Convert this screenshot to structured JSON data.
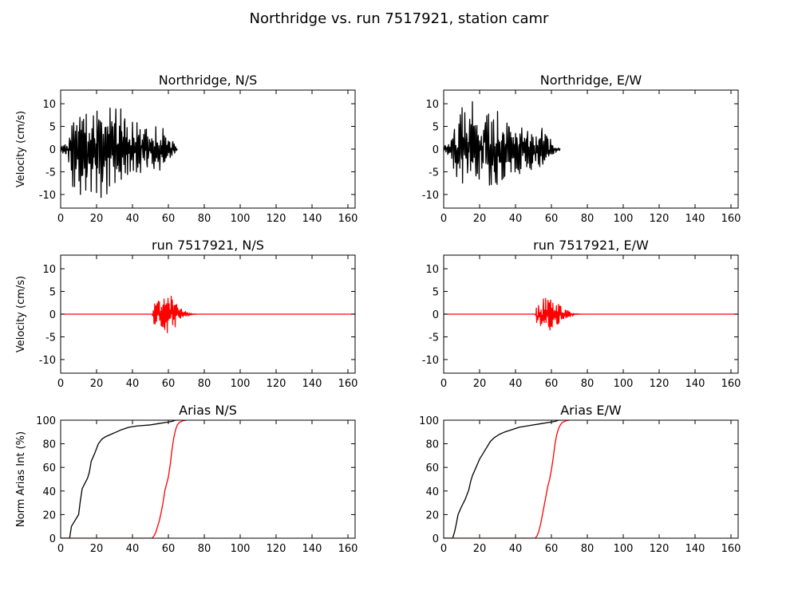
{
  "figure": {
    "title": "Northridge vs. run 7517921, station camr"
  },
  "colors": {
    "recorded": "#000000",
    "simulated": "#ff0000",
    "axes": "#000000",
    "background": "#ffffff"
  },
  "chart_data": [
    {
      "id": "vel_ns_recorded",
      "type": "line",
      "title": "Northridge, N/S",
      "xlabel": "",
      "ylabel": "Velocity (cm/s)",
      "xlim": [
        0,
        164
      ],
      "ylim": [
        -13,
        13
      ],
      "xticks": [
        0,
        20,
        40,
        60,
        80,
        100,
        120,
        140,
        160
      ],
      "yticks": [
        -10,
        -5,
        0,
        5,
        10
      ],
      "series": [
        {
          "color": "#000000",
          "kind": "waveform",
          "t_start": 0,
          "t_end": 65,
          "dt": 0.25,
          "seed": 11,
          "envelope": [
            [
              0,
              1
            ],
            [
              4,
              1.5
            ],
            [
              6,
              10
            ],
            [
              20,
              11
            ],
            [
              30,
              10
            ],
            [
              40,
              7
            ],
            [
              50,
              5
            ],
            [
              58,
              5
            ],
            [
              62,
              2
            ],
            [
              65,
              0.3
            ]
          ]
        }
      ]
    },
    {
      "id": "vel_ew_recorded",
      "type": "line",
      "title": "Northridge, E/W",
      "xlabel": "",
      "ylabel": "",
      "xlim": [
        0,
        164
      ],
      "ylim": [
        -13,
        13
      ],
      "xticks": [
        0,
        20,
        40,
        60,
        80,
        100,
        120,
        140,
        160
      ],
      "yticks": [
        -10,
        -5,
        0,
        5,
        10
      ],
      "series": [
        {
          "color": "#000000",
          "kind": "waveform",
          "t_start": 0,
          "t_end": 65,
          "dt": 0.25,
          "seed": 23,
          "envelope": [
            [
              0,
              1
            ],
            [
              4,
              1.5
            ],
            [
              6,
              8
            ],
            [
              14,
              12
            ],
            [
              22,
              10
            ],
            [
              32,
              8
            ],
            [
              40,
              6
            ],
            [
              50,
              5
            ],
            [
              55,
              5
            ],
            [
              60,
              2
            ],
            [
              65,
              0.3
            ]
          ]
        }
      ]
    },
    {
      "id": "vel_ns_simulated",
      "type": "line",
      "title": "run 7517921, N/S",
      "xlabel": "",
      "ylabel": "Velocity (cm/s)",
      "xlim": [
        0,
        164
      ],
      "ylim": [
        -13,
        13
      ],
      "xticks": [
        0,
        20,
        40,
        60,
        80,
        100,
        120,
        140,
        160
      ],
      "yticks": [
        -10,
        -5,
        0,
        5,
        10
      ],
      "series": [
        {
          "color": "#ff0000",
          "kind": "waveform",
          "t_start": 0,
          "t_end": 164,
          "dt": 0.2,
          "seed": 37,
          "envelope": [
            [
              0,
              0
            ],
            [
              51,
              0
            ],
            [
              52,
              2.5
            ],
            [
              56,
              3.5
            ],
            [
              60,
              4.5
            ],
            [
              63,
              3.5
            ],
            [
              66,
              1.5
            ],
            [
              70,
              0.8
            ],
            [
              73,
              0.2
            ],
            [
              76,
              0
            ],
            [
              164,
              0
            ]
          ]
        }
      ]
    },
    {
      "id": "vel_ew_simulated",
      "type": "line",
      "title": "run 7517921, E/W",
      "xlabel": "",
      "ylabel": "",
      "xlim": [
        0,
        164
      ],
      "ylim": [
        -13,
        13
      ],
      "xticks": [
        0,
        20,
        40,
        60,
        80,
        100,
        120,
        140,
        160
      ],
      "yticks": [
        -10,
        -5,
        0,
        5,
        10
      ],
      "series": [
        {
          "color": "#ff0000",
          "kind": "waveform",
          "t_start": 0,
          "t_end": 164,
          "dt": 0.2,
          "seed": 53,
          "envelope": [
            [
              0,
              0
            ],
            [
              51,
              0
            ],
            [
              52,
              2.5
            ],
            [
              56,
              3.5
            ],
            [
              60,
              4.5
            ],
            [
              63,
              3.5
            ],
            [
              66,
              1.5
            ],
            [
              70,
              0.8
            ],
            [
              73,
              0.2
            ],
            [
              76,
              0
            ],
            [
              164,
              0
            ]
          ]
        }
      ]
    },
    {
      "id": "arias_ns",
      "type": "line",
      "title": "Arias N/S",
      "xlabel": "",
      "ylabel": "Norm Arias Int (%)",
      "xlim": [
        0,
        164
      ],
      "ylim": [
        0,
        100
      ],
      "xticks": [
        0,
        20,
        40,
        60,
        80,
        100,
        120,
        140,
        160
      ],
      "yticks": [
        0,
        20,
        40,
        60,
        80,
        100
      ],
      "series": [
        {
          "color": "#000000",
          "kind": "curve",
          "x": [
            0,
            5,
            6,
            8,
            10,
            11,
            12,
            13,
            15,
            16,
            17,
            19,
            21,
            23,
            25,
            28,
            31,
            34,
            38,
            42,
            46,
            50,
            54,
            58,
            62,
            64,
            66
          ],
          "y": [
            0,
            0,
            10,
            15,
            20,
            32,
            42,
            45,
            51,
            56,
            65,
            72,
            80,
            84,
            86,
            88,
            90,
            92,
            94,
            95,
            95.5,
            96,
            97,
            98,
            99,
            100,
            100
          ]
        },
        {
          "color": "#ff0000",
          "kind": "curve",
          "x": [
            0,
            51,
            52,
            53,
            54,
            55,
            56,
            57,
            58,
            59,
            60,
            61,
            62,
            63,
            64,
            65,
            66,
            68,
            70
          ],
          "y": [
            0,
            0,
            2,
            5,
            10,
            15,
            22,
            30,
            40,
            46,
            52,
            62,
            75,
            85,
            92,
            96,
            98,
            99.5,
            100
          ]
        }
      ]
    },
    {
      "id": "arias_ew",
      "type": "line",
      "title": "Arias E/W",
      "xlabel": "",
      "ylabel": "",
      "xlim": [
        0,
        164
      ],
      "ylim": [
        0,
        100
      ],
      "xticks": [
        0,
        20,
        40,
        60,
        80,
        100,
        120,
        140,
        160
      ],
      "yticks": [
        0,
        20,
        40,
        60,
        80,
        100
      ],
      "series": [
        {
          "color": "#000000",
          "kind": "curve",
          "x": [
            0,
            5,
            6,
            7,
            8,
            10,
            12,
            14,
            15,
            16,
            18,
            20,
            22,
            24,
            26,
            28,
            31,
            34,
            38,
            42,
            46,
            50,
            54,
            58,
            62,
            64,
            66
          ],
          "y": [
            0,
            0,
            5,
            12,
            20,
            27,
            33,
            41,
            48,
            53,
            60,
            67,
            72,
            77,
            82,
            85,
            88,
            90,
            92,
            94,
            95,
            96,
            97,
            98,
            99,
            100,
            100
          ]
        },
        {
          "color": "#ff0000",
          "kind": "curve",
          "x": [
            0,
            51,
            52,
            53,
            54,
            55,
            56,
            57,
            58,
            59,
            60,
            61,
            62,
            63,
            64,
            65,
            66,
            68,
            70
          ],
          "y": [
            0,
            0,
            2,
            6,
            12,
            20,
            28,
            36,
            44,
            50,
            58,
            68,
            80,
            88,
            93,
            96,
            98,
            99.5,
            100
          ]
        }
      ]
    }
  ]
}
